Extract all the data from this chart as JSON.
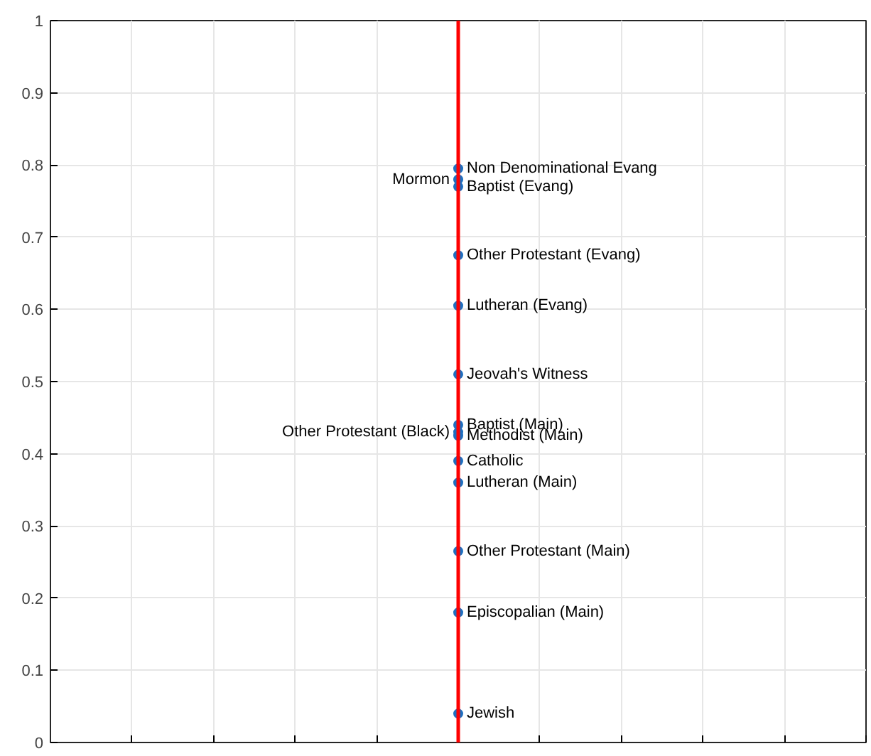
{
  "chart_data": {
    "type": "scatter",
    "categories": [
      null
    ],
    "series": [
      {
        "name": "Non Denominational Evang",
        "color": "#1f6fbf",
        "values": [
          0.795
        ]
      },
      {
        "name": "Mormon",
        "color": "#1f6fbf",
        "values": [
          0.78
        ]
      },
      {
        "name": "Baptist (Evang)",
        "color": "#1f6fbf",
        "values": [
          0.77
        ]
      },
      {
        "name": "Other Protestant (Evang)",
        "color": "#1f6fbf",
        "values": [
          0.675
        ]
      },
      {
        "name": "Lutheran (Evang)",
        "color": "#1f6fbf",
        "values": [
          0.605
        ]
      },
      {
        "name": "Jeovah's Witness",
        "color": "#1f6fbf",
        "values": [
          0.51
        ]
      },
      {
        "name": "Baptist (Main)",
        "color": "#1f6fbf",
        "values": [
          0.44
        ]
      },
      {
        "name": "Other Protestant (Black)",
        "color": "#1f6fbf",
        "values": [
          0.43
        ]
      },
      {
        "name": "Methodist (Main)",
        "color": "#1f6fbf",
        "values": [
          0.425
        ]
      },
      {
        "name": "Catholic",
        "color": "#1f6fbf",
        "values": [
          0.39
        ]
      },
      {
        "name": "Lutheran (Main)",
        "color": "#1f6fbf",
        "values": [
          0.36
        ]
      },
      {
        "name": "Other Protestant (Main)",
        "color": "#1f6fbf",
        "values": [
          0.265
        ]
      },
      {
        "name": "Episcopalian (Main)",
        "color": "#1f6fbf",
        "values": [
          0.18
        ]
      },
      {
        "name": "Jewish",
        "color": "#1f6fbf",
        "values": [
          0.04
        ]
      }
    ],
    "marker": "circle",
    "ref_lines": [
      {
        "axis": "x",
        "color": "#ff0000"
      }
    ],
    "ylim": [
      0,
      1
    ],
    "yticks": [
      0,
      0.1,
      0.2,
      0.3,
      0.4,
      0.5,
      0.6,
      0.7,
      0.8,
      0.9,
      1
    ],
    "grid": true
  }
}
